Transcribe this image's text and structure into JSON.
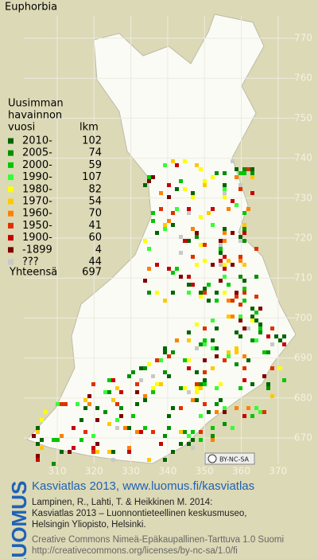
{
  "title": "Euphorbia",
  "legend": {
    "heading": [
      "Uusimman",
      "havainnon",
      "vuosi"
    ],
    "count_heading": "lkm",
    "rows": [
      {
        "label": "2010-",
        "count": 102,
        "color": "#006400"
      },
      {
        "label": "2005-",
        "count": 74,
        "color": "#009000"
      },
      {
        "label": "2000-",
        "count": 59,
        "color": "#00c800"
      },
      {
        "label": "1990-",
        "count": 107,
        "color": "#33ff33"
      },
      {
        "label": "1980-",
        "count": 82,
        "color": "#ffff00"
      },
      {
        "label": "1970-",
        "count": 54,
        "color": "#ffc800"
      },
      {
        "label": "1960-",
        "count": 70,
        "color": "#ff8000"
      },
      {
        "label": "1950-",
        "count": 41,
        "color": "#e03000"
      },
      {
        "label": "1900-",
        "count": 60,
        "color": "#c80000"
      },
      {
        "label": "-1899",
        "count": 4,
        "color": "#800000"
      },
      {
        "label": "???",
        "count": 44,
        "color": "#c8c8c8"
      }
    ],
    "total_label": "Yhteensä",
    "total": 697
  },
  "x_labels": [
    310,
    320,
    330,
    340,
    350,
    360,
    370
  ],
  "y_labels": [
    770,
    760,
    750,
    740,
    730,
    720,
    710,
    700,
    690,
    680,
    670
  ],
  "license_badge": "BY-NC-SA",
  "footer": {
    "logo": "LUOMUS",
    "headline": "Kasviatlas 2013, www.luomus.fi/kasviatlas",
    "citation": [
      "Lampinen, R., Lahti, T. & Heikkinen M. 2014:",
      "Kasviatlas 2013 – Luonnontieteellinen keskusmuseo,",
      "Helsingin Yliopisto, Helsinki."
    ],
    "license": [
      "Creative Commons Nimeä-Epäkaupallinen-Tarttuva 1.0 Suomi",
      "http://creativecommons.org/licenses/by-nc-sa/1.0/fi"
    ]
  }
}
